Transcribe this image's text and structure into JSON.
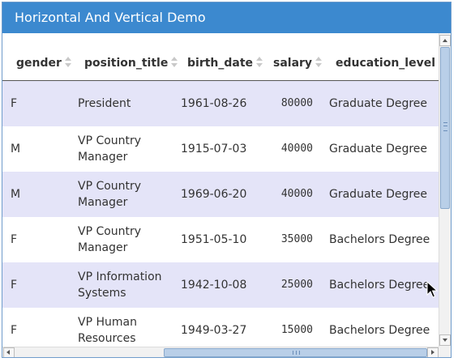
{
  "window": {
    "title": "Horizontal And Vertical Demo"
  },
  "columns": [
    "gender",
    "position_title",
    "birth_date",
    "salary",
    "education_level"
  ],
  "rows": [
    {
      "gender": "F",
      "position_title": "President",
      "birth_date": "1961-08-26",
      "salary": "80000",
      "education_level": "Graduate Degree"
    },
    {
      "gender": "M",
      "position_title": "VP Country Manager",
      "birth_date": "1915-07-03",
      "salary": "40000",
      "education_level": "Graduate Degree"
    },
    {
      "gender": "M",
      "position_title": "VP Country Manager",
      "birth_date": "1969-06-20",
      "salary": "40000",
      "education_level": "Graduate Degree"
    },
    {
      "gender": "F",
      "position_title": "VP Country Manager",
      "birth_date": "1951-05-10",
      "salary": "35000",
      "education_level": "Bachelors Degree"
    },
    {
      "gender": "F",
      "position_title": "VP Information Systems",
      "birth_date": "1942-10-08",
      "salary": "25000",
      "education_level": "Bachelors Degree"
    },
    {
      "gender": "F",
      "position_title": "VP Human Resources",
      "birth_date": "1949-03-27",
      "salary": "15000",
      "education_level": "Bachelors Degree"
    }
  ],
  "icons": {
    "sort": "sort-arrows-icon",
    "cursor": "mouse-pointer-icon"
  },
  "colors": {
    "title_bar": "#3c89cf",
    "row_alt": "#e4e4f8",
    "scroll_thumb": "#b9cfe8"
  }
}
